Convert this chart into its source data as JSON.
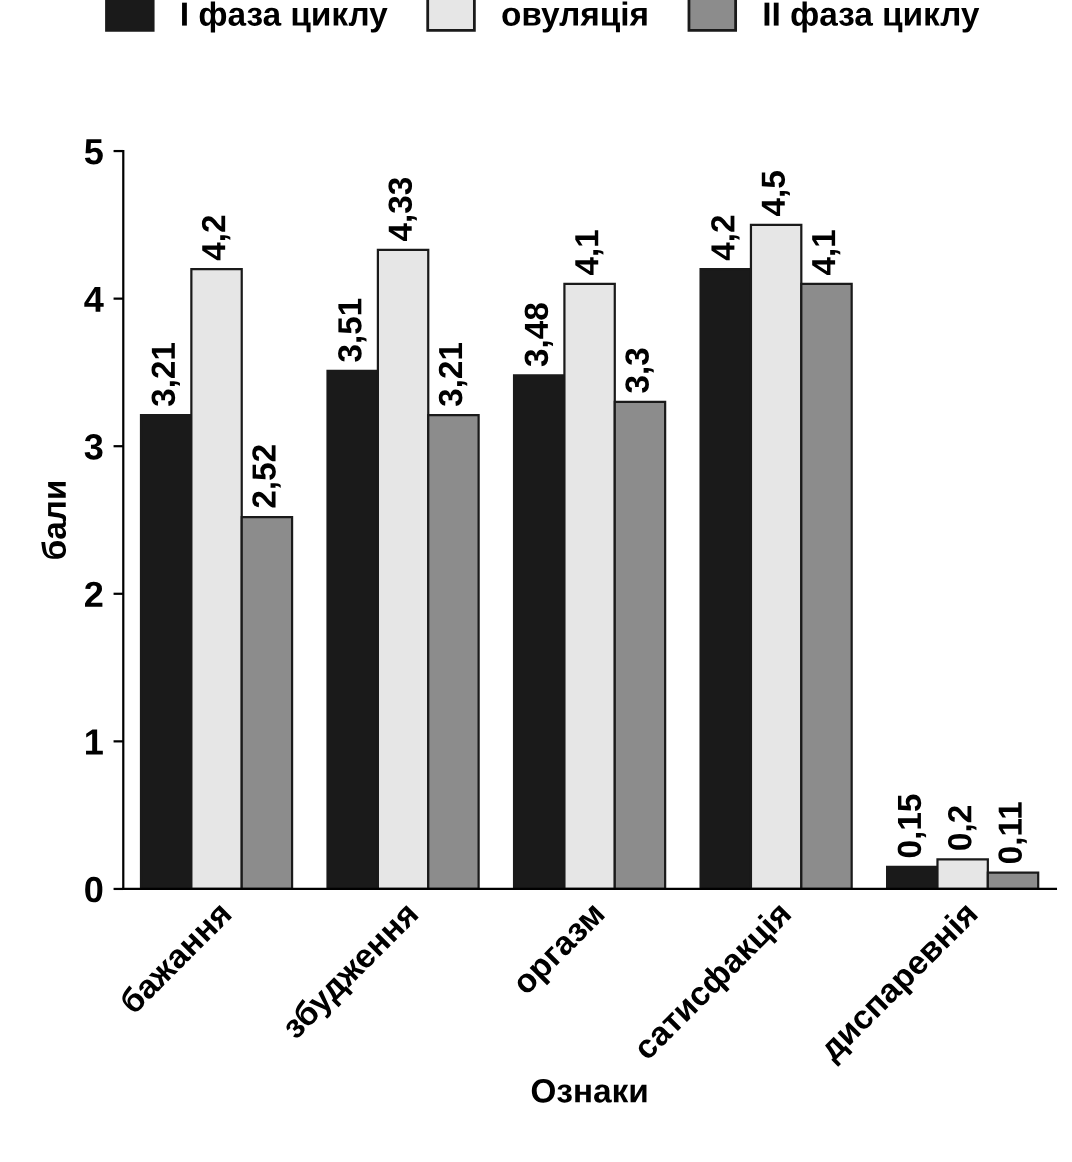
{
  "chart_data": {
    "type": "bar",
    "xlabel": "Ознаки",
    "ylabel": "бали",
    "categories": [
      "бажання",
      "збудження",
      "оргазм",
      "сатисфакція",
      "диспаревнія"
    ],
    "series": [
      {
        "name": "I фаза циклу",
        "color": "#1a1a1a",
        "values": [
          3.21,
          3.51,
          3.48,
          4.2,
          0.15
        ],
        "value_labels": [
          "3,21",
          "3,51",
          "3,48",
          "4,2",
          "0,15"
        ]
      },
      {
        "name": "овуляція",
        "color": "#e6e6e6",
        "values": [
          4.2,
          4.33,
          4.1,
          4.5,
          0.2
        ],
        "value_labels": [
          "4,2",
          "4,33",
          "4,1",
          "4,5",
          "0,2"
        ]
      },
      {
        "name": "II фаза циклу",
        "color": "#8c8c8c",
        "values": [
          2.52,
          3.21,
          3.3,
          4.1,
          0.11
        ],
        "value_labels": [
          "2,52",
          "3,21",
          "3,3",
          "4,1",
          "0,11"
        ]
      }
    ],
    "ylim": [
      0,
      5
    ],
    "yticks": [
      0,
      1,
      2,
      3,
      4,
      5
    ],
    "grid": false,
    "legend": "top"
  }
}
